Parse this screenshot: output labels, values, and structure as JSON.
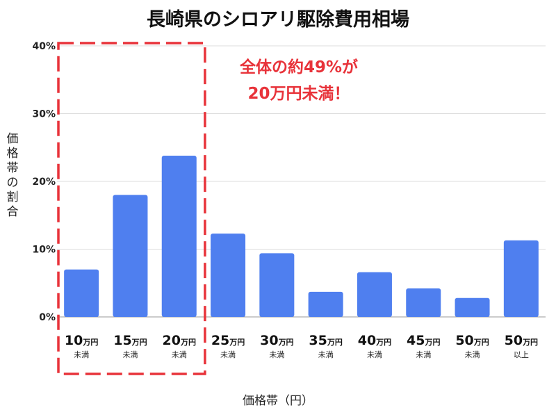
{
  "chart_data": {
    "type": "bar",
    "title": "長崎県のシロアリ駆除費用相場",
    "xlabel": "価格帯（円）",
    "ylabel": "価格帯の割合",
    "ylim": [
      0,
      40
    ],
    "yticks": [
      "0%",
      "10%",
      "20%",
      "30%",
      "40%"
    ],
    "categories": [
      {
        "main": "10",
        "unit": "万円",
        "sub": "未満"
      },
      {
        "main": "15",
        "unit": "万円",
        "sub": "未満"
      },
      {
        "main": "20",
        "unit": "万円",
        "sub": "未満"
      },
      {
        "main": "25",
        "unit": "万円",
        "sub": "未満"
      },
      {
        "main": "30",
        "unit": "万円",
        "sub": "未満"
      },
      {
        "main": "35",
        "unit": "万円",
        "sub": "未満"
      },
      {
        "main": "40",
        "unit": "万円",
        "sub": "未満"
      },
      {
        "main": "45",
        "unit": "万円",
        "sub": "未満"
      },
      {
        "main": "50",
        "unit": "万円",
        "sub": "未満"
      },
      {
        "main": "50",
        "unit": "万円",
        "sub": "以上"
      }
    ],
    "values": [
      7.0,
      18.0,
      23.8,
      12.3,
      9.4,
      3.7,
      6.6,
      4.2,
      2.8,
      11.3
    ],
    "bar_color": "#4f7fef",
    "grid": true,
    "highlight": {
      "start": 0,
      "end": 2,
      "color": "#e8333a"
    },
    "annotation": {
      "line1": "全体の約49%が",
      "line2": "20万円未満！"
    }
  }
}
